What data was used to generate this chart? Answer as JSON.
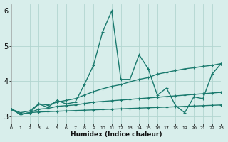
{
  "xlabel": "Humidex (Indice chaleur)",
  "xlim": [
    0,
    23
  ],
  "ylim": [
    2.8,
    6.2
  ],
  "yticks": [
    3,
    4,
    5,
    6
  ],
  "xtick_labels": [
    "0",
    "1",
    "2",
    "3",
    "4",
    "5",
    "6",
    "7",
    "8",
    "9",
    "10",
    "11",
    "12",
    "13",
    "14",
    "15",
    "16",
    "17",
    "18",
    "19",
    "20",
    "21",
    "22",
    "23"
  ],
  "background_color": "#d8eeeb",
  "grid_color": "#b2d5d0",
  "line_color": "#1a7a6e",
  "lines": [
    {
      "x": [
        0,
        1,
        2,
        3,
        4,
        5,
        6,
        7,
        8,
        9,
        10,
        11,
        12,
        13,
        14,
        15,
        16,
        17,
        18,
        19,
        20,
        21,
        22,
        23
      ],
      "y": [
        3.2,
        3.05,
        3.1,
        3.35,
        3.25,
        3.45,
        3.35,
        3.4,
        3.9,
        4.45,
        5.4,
        6.0,
        4.05,
        4.05,
        4.75,
        4.35,
        3.6,
        3.8,
        3.3,
        3.1,
        3.55,
        3.5,
        4.2,
        4.5
      ],
      "style": "-",
      "lw": 1.0
    },
    {
      "x": [
        0,
        1,
        2,
        3,
        4,
        5,
        6,
        7,
        8,
        9,
        10,
        11,
        12,
        13,
        14,
        15,
        16,
        17,
        18,
        19,
        20,
        21,
        22,
        23
      ],
      "y": [
        3.2,
        3.1,
        3.15,
        3.35,
        3.32,
        3.4,
        3.45,
        3.5,
        3.6,
        3.7,
        3.78,
        3.85,
        3.9,
        3.98,
        4.05,
        4.1,
        4.2,
        4.25,
        4.3,
        4.35,
        4.38,
        4.42,
        4.45,
        4.5
      ],
      "style": "-",
      "lw": 1.0
    },
    {
      "x": [
        0,
        1,
        2,
        3,
        4,
        5,
        6,
        7,
        8,
        9,
        10,
        11,
        12,
        13,
        14,
        15,
        16,
        17,
        18,
        19,
        20,
        21,
        22,
        23
      ],
      "y": [
        3.2,
        3.05,
        3.1,
        3.2,
        3.22,
        3.28,
        3.3,
        3.32,
        3.36,
        3.4,
        3.42,
        3.44,
        3.46,
        3.48,
        3.5,
        3.52,
        3.54,
        3.56,
        3.58,
        3.6,
        3.62,
        3.64,
        3.66,
        3.68
      ],
      "style": "-",
      "lw": 1.0
    },
    {
      "x": [
        0,
        1,
        2,
        3,
        4,
        5,
        6,
        7,
        8,
        9,
        10,
        11,
        12,
        13,
        14,
        15,
        16,
        17,
        18,
        19,
        20,
        21,
        22,
        23
      ],
      "y": [
        3.2,
        3.05,
        3.1,
        3.12,
        3.13,
        3.14,
        3.15,
        3.16,
        3.17,
        3.18,
        3.19,
        3.2,
        3.21,
        3.22,
        3.23,
        3.24,
        3.25,
        3.26,
        3.27,
        3.28,
        3.29,
        3.3,
        3.31,
        3.32
      ],
      "style": "-",
      "lw": 1.0
    }
  ]
}
